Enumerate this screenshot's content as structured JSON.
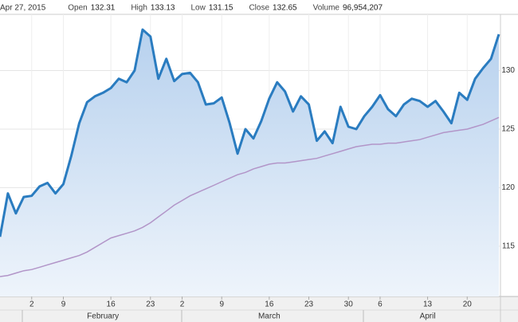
{
  "header": {
    "date": "Apr 27, 2015",
    "fields": [
      {
        "label": "Open",
        "value": "132.31"
      },
      {
        "label": "High",
        "value": "133.13"
      },
      {
        "label": "Low",
        "value": "131.15"
      },
      {
        "label": "Close",
        "value": "132.65"
      },
      {
        "label": "Volume",
        "value": "96,954,207"
      }
    ]
  },
  "chart_data": {
    "type": "area-line",
    "categories": [
      null,
      null,
      null,
      null,
      "2",
      null,
      null,
      null,
      "9",
      null,
      null,
      null,
      null,
      null,
      "16",
      null,
      null,
      null,
      null,
      "23",
      null,
      null,
      null,
      "2",
      null,
      null,
      null,
      null,
      "9",
      null,
      null,
      null,
      null,
      null,
      "16",
      null,
      null,
      null,
      null,
      "23",
      null,
      null,
      null,
      null,
      "30",
      null,
      null,
      null,
      "6",
      null,
      null,
      null,
      null,
      null,
      "13",
      null,
      null,
      null,
      null,
      "20",
      null,
      null,
      null,
      null
    ],
    "months": [
      null,
      null,
      null,
      null,
      null,
      null,
      null,
      null,
      null,
      null,
      null,
      null,
      null,
      "February",
      null,
      null,
      null,
      null,
      null,
      null,
      null,
      null,
      null,
      null,
      null,
      null,
      null,
      null,
      null,
      null,
      null,
      null,
      null,
      null,
      "March",
      null,
      null,
      null,
      null,
      null,
      null,
      null,
      null,
      null,
      null,
      null,
      null,
      null,
      null,
      null,
      null,
      null,
      null,
      null,
      "April",
      null,
      null,
      null,
      null,
      null,
      null,
      null,
      null,
      null
    ],
    "series": [
      {
        "color": "#2a7cc0",
        "values": [
          115.8,
          119.5,
          117.8,
          119.2,
          119.3,
          120.1,
          120.4,
          119.5,
          120.3,
          122.7,
          125.5,
          127.3,
          127.8,
          128.1,
          128.5,
          129.3,
          129.0,
          130.0,
          133.5,
          132.9,
          129.3,
          131.0,
          129.1,
          129.7,
          129.8,
          129.0,
          127.1,
          127.2,
          127.7,
          125.5,
          122.9,
          125.0,
          124.2,
          125.7,
          127.6,
          129.0,
          128.2,
          126.5,
          127.8,
          127.1,
          124.0,
          124.8,
          123.8,
          126.9,
          125.2,
          125.0,
          126.1,
          126.9,
          127.9,
          126.7,
          126.1,
          127.1,
          127.6,
          127.4,
          126.9,
          127.4,
          126.5,
          125.5,
          128.1,
          127.5,
          129.3,
          130.2,
          131.0,
          133.1
        ]
      },
      {
        "color": "#b295c8",
        "values": [
          112.4,
          112.5,
          112.7,
          112.9,
          113.0,
          113.2,
          113.4,
          113.6,
          113.8,
          114.0,
          114.2,
          114.5,
          114.9,
          115.3,
          115.7,
          115.9,
          116.1,
          116.3,
          116.6,
          117.0,
          117.5,
          118.0,
          118.5,
          118.9,
          119.3,
          119.6,
          119.9,
          120.2,
          120.5,
          120.8,
          121.1,
          121.3,
          121.6,
          121.8,
          122.0,
          122.1,
          122.1,
          122.2,
          122.3,
          122.4,
          122.5,
          122.7,
          122.9,
          123.1,
          123.3,
          123.5,
          123.6,
          123.7,
          123.7,
          123.8,
          123.8,
          123.9,
          124.0,
          124.1,
          124.3,
          124.5,
          124.7,
          124.8,
          124.9,
          125.0,
          125.2,
          125.4,
          125.7,
          126.0
        ]
      }
    ],
    "ylim": [
      110.7,
      134.8
    ],
    "yticks": [
      115,
      120,
      125,
      130
    ],
    "grid": true
  }
}
